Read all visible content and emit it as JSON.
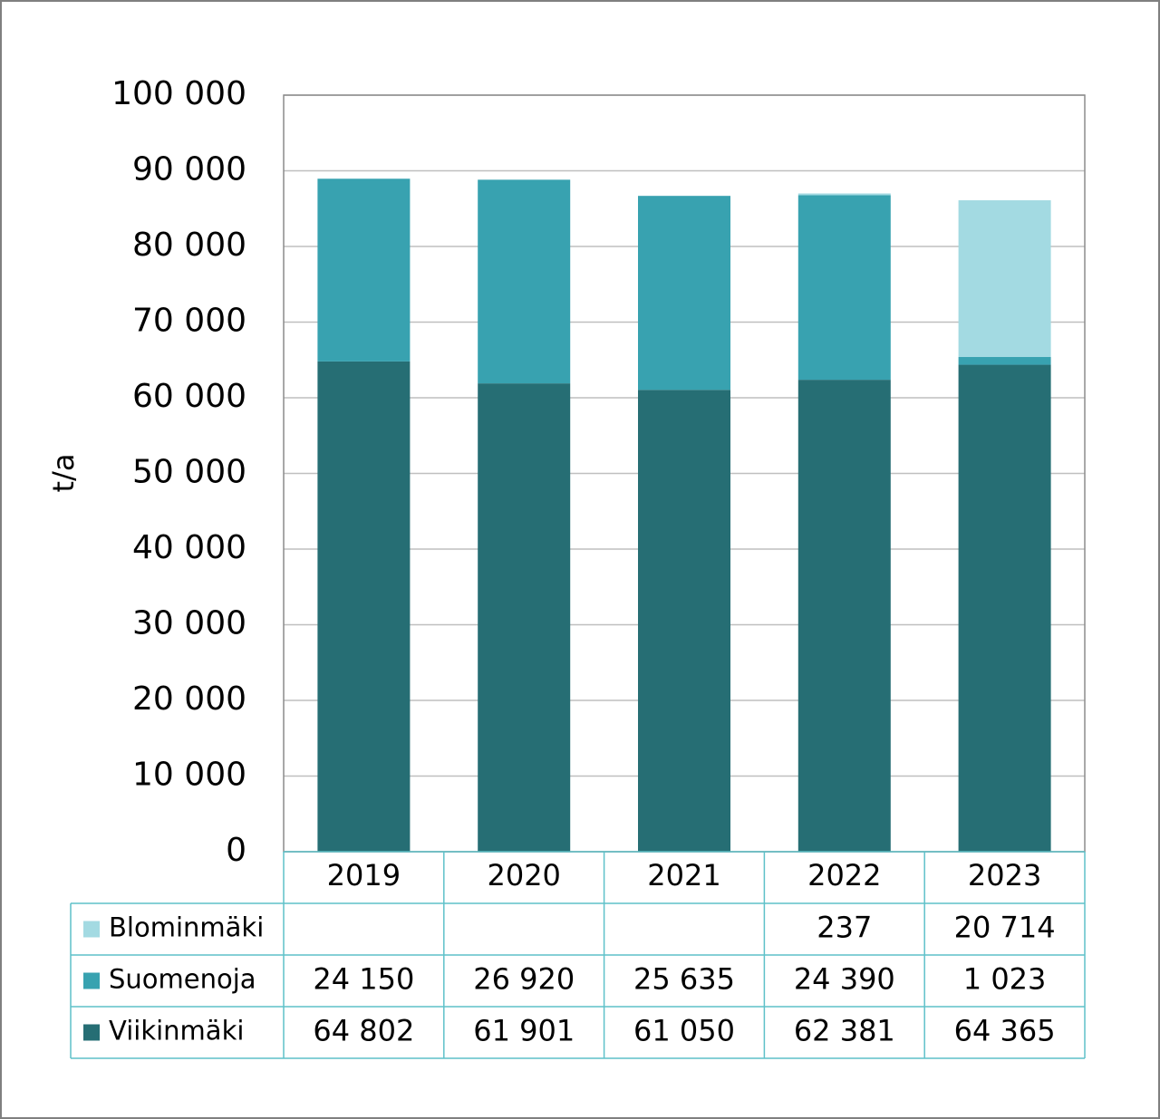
{
  "chart_data": {
    "type": "stacked-bar",
    "y_label": "t/a",
    "categories": [
      "2019",
      "2020",
      "2021",
      "2022",
      "2023"
    ],
    "series": [
      {
        "name": "Viikinmäki",
        "color": "#266e74",
        "values": [
          64802,
          61901,
          61050,
          62381,
          64365
        ],
        "value_labels": [
          "64 802",
          "61 901",
          "61 050",
          "62 381",
          "64 365"
        ]
      },
      {
        "name": "Suomenoja",
        "color": "#38a2b0",
        "values": [
          24150,
          26920,
          25635,
          24390,
          1023
        ],
        "value_labels": [
          "24 150",
          "26 920",
          "25 635",
          "24 390",
          "1 023"
        ]
      },
      {
        "name": "Blominmäki",
        "color": "#a3dae2",
        "values": [
          null,
          null,
          null,
          237,
          20714
        ],
        "value_labels": [
          null,
          null,
          null,
          "237",
          "20 714"
        ]
      }
    ],
    "ylim": [
      0,
      100000
    ],
    "yticks": [
      0,
      {
        "value": 10000,
        "label": "10 000"
      },
      {
        "value": 20000,
        "label": "20 000"
      },
      {
        "value": 30000,
        "label": "30 000"
      },
      {
        "value": 40000,
        "label": "40 000"
      },
      {
        "value": 50000,
        "label": "50 000"
      },
      {
        "value": 60000,
        "label": "60 000"
      },
      {
        "value": 70000,
        "label": "70 000"
      },
      {
        "value": 80000,
        "label": "80 000"
      },
      {
        "value": 90000,
        "label": "90 000"
      },
      {
        "value": 100000,
        "label": "100 000"
      }
    ],
    "grid": true
  }
}
